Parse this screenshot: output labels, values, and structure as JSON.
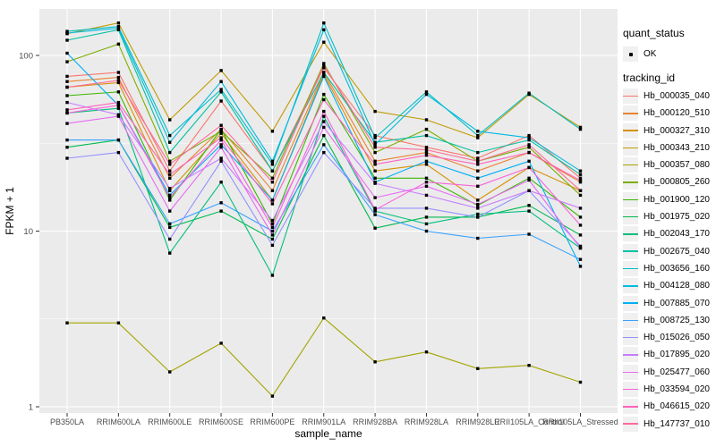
{
  "style": {
    "panel_bg": "#EBEBEB",
    "grid_color": "#FFFFFF",
    "axis_text_color": "#4D4D4D",
    "tick_color": "#333333",
    "point_color": "#000000",
    "legend_key_bg": "#F0F0F0"
  },
  "chart_data": {
    "type": "line",
    "title": "",
    "xlabel": "sample_name",
    "ylabel": "FPKM + 1",
    "y_scale": "log10",
    "y_ticks": [
      1,
      10,
      100
    ],
    "y_minor_gridlines": [
      3.162,
      31.62
    ],
    "ylim": [
      0.93,
      185
    ],
    "grid": "on",
    "legend_position": "right",
    "point_marker": "filled-black-square",
    "categories": [
      "PB350LA",
      "RRIM600LA",
      "RRIM600LE",
      "RRIM600SE",
      "RRIM600PE",
      "RRIM901LA",
      "RRIM928BA",
      "RRIM928LA",
      "RRIM928LE",
      "RRII105LA_Control",
      "RRII105LA_Stressed"
    ],
    "legend": {
      "quant_status_title": "quant_status",
      "quant_status_items": [
        {
          "label": "OK"
        }
      ],
      "tracking_title": "tracking_id"
    },
    "series": [
      {
        "name": "Hb_000035_040",
        "color": "#F8766D",
        "values": [
          76,
          80,
          22,
          55,
          22,
          85,
          35,
          30,
          26,
          35,
          20
        ]
      },
      {
        "name": "Hb_000120_510",
        "color": "#EA8331",
        "values": [
          71,
          75,
          20,
          38,
          17,
          80,
          25,
          28,
          22,
          28,
          19
        ]
      },
      {
        "name": "Hb_000327_310",
        "color": "#D89000",
        "values": [
          66,
          70,
          17,
          36,
          15,
          78,
          22,
          24,
          15,
          23,
          17
        ]
      },
      {
        "name": "Hb_000343_210",
        "color": "#C09B00",
        "values": [
          133,
          153,
          43,
          82,
          37,
          119,
          48,
          43,
          34,
          60,
          39
        ]
      },
      {
        "name": "Hb_000357_080",
        "color": "#A3A500",
        "values": [
          3.0,
          3.0,
          1.58,
          2.3,
          1.15,
          3.2,
          1.8,
          2.05,
          1.65,
          1.72,
          1.38
        ]
      },
      {
        "name": "Hb_000805_260",
        "color": "#7CAE00",
        "values": [
          92,
          116,
          25,
          37,
          20,
          90,
          28,
          38,
          25,
          30,
          16
        ]
      },
      {
        "name": "Hb_001900_120",
        "color": "#39B600",
        "values": [
          59,
          62,
          15,
          38,
          11,
          60,
          20,
          20,
          14,
          20,
          12
        ]
      },
      {
        "name": "Hb_001975_020",
        "color": "#00BB4E",
        "values": [
          30,
          33,
          10.5,
          13,
          9,
          35,
          10.4,
          12,
          12,
          14,
          9.5
        ]
      },
      {
        "name": "Hb_002043_170",
        "color": "#00BF7D",
        "values": [
          47,
          50,
          7.5,
          19,
          5.6,
          45,
          13,
          11,
          12.5,
          13,
          8
        ]
      },
      {
        "name": "Hb_002675_040",
        "color": "#00C1A3",
        "values": [
          122,
          140,
          28,
          62,
          22,
          80,
          32,
          35,
          28,
          33,
          21
        ]
      },
      {
        "name": "Hb_003656_160",
        "color": "#00BFC4",
        "values": [
          137,
          146,
          35,
          64,
          24,
          153,
          34,
          62,
          35,
          61,
          38
        ]
      },
      {
        "name": "Hb_004128_080",
        "color": "#00BAE0",
        "values": [
          134,
          143,
          32,
          71,
          25,
          140,
          31,
          60,
          37,
          34,
          22
        ]
      },
      {
        "name": "Hb_007885_070",
        "color": "#00B0F6",
        "values": [
          103,
          52,
          16,
          31,
          15,
          76,
          19,
          25,
          20,
          25,
          6.3
        ]
      },
      {
        "name": "Hb_008725_130",
        "color": "#35A2FF",
        "values": [
          33,
          33,
          11,
          14.5,
          10,
          31,
          12.4,
          10,
          9.1,
          9.6,
          6.9
        ]
      },
      {
        "name": "Hb_015026_050",
        "color": "#9590FF",
        "values": [
          26,
          28,
          9,
          25,
          8.3,
          28,
          13.5,
          13.5,
          12,
          17,
          8.2
        ]
      },
      {
        "name": "Hb_017895_020",
        "color": "#C77CFF",
        "values": [
          54,
          46,
          17.5,
          26,
          11.5,
          42,
          18.7,
          16,
          13.5,
          17,
          13.5
        ]
      },
      {
        "name": "Hb_025477_060",
        "color": "#E76BF3",
        "values": [
          41,
          45,
          13,
          30,
          9.5,
          39,
          15.5,
          18,
          14.2,
          19.5,
          8
        ]
      },
      {
        "name": "Hb_033594_020",
        "color": "#FA62DB",
        "values": [
          47,
          52,
          15.5,
          33,
          10.5,
          48,
          13.2,
          19,
          18,
          23,
          10.8
        ]
      },
      {
        "name": "Hb_046615_020",
        "color": "#FF62BC",
        "values": [
          49,
          54,
          21,
          34,
          14.3,
          56,
          24,
          27,
          24,
          28,
          19.4
        ]
      },
      {
        "name": "Hb_147737_010",
        "color": "#FF6A98",
        "values": [
          66,
          72,
          24,
          40,
          19,
          88,
          30,
          29,
          25,
          31,
          17
        ]
      }
    ]
  }
}
